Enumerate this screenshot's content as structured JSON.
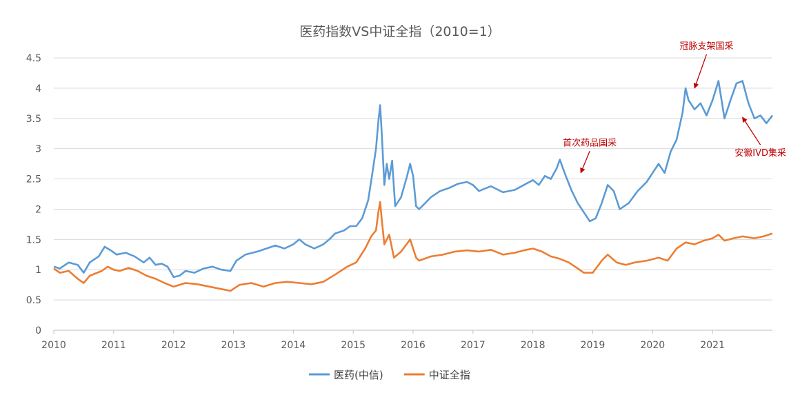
{
  "chart_data": {
    "type": "line",
    "title": "医药指数VS中证全指（2010=1）",
    "ylim": [
      0,
      4.5
    ],
    "y_ticks": [
      "0",
      "0.5",
      "1",
      "1.5",
      "2",
      "2.5",
      "3",
      "3.5",
      "4",
      "4.5"
    ],
    "xlim": [
      2010,
      2022
    ],
    "x_ticks": [
      "2010",
      "2011",
      "2012",
      "2013",
      "2014",
      "2015",
      "2016",
      "2017",
      "2018",
      "2019",
      "2020",
      "2021"
    ],
    "grid": true,
    "legend_position": "bottom",
    "series": [
      {
        "name": "医药(中信)",
        "color": "#5b9bd5",
        "points": [
          [
            2010.0,
            1.05
          ],
          [
            2010.1,
            1.02
          ],
          [
            2010.25,
            1.12
          ],
          [
            2010.4,
            1.08
          ],
          [
            2010.5,
            0.95
          ],
          [
            2010.6,
            1.12
          ],
          [
            2010.75,
            1.22
          ],
          [
            2010.85,
            1.38
          ],
          [
            2010.95,
            1.32
          ],
          [
            2011.05,
            1.25
          ],
          [
            2011.2,
            1.28
          ],
          [
            2011.35,
            1.22
          ],
          [
            2011.5,
            1.12
          ],
          [
            2011.6,
            1.2
          ],
          [
            2011.7,
            1.08
          ],
          [
            2011.8,
            1.1
          ],
          [
            2011.9,
            1.05
          ],
          [
            2012.0,
            0.88
          ],
          [
            2012.1,
            0.9
          ],
          [
            2012.2,
            0.98
          ],
          [
            2012.35,
            0.95
          ],
          [
            2012.5,
            1.02
          ],
          [
            2012.65,
            1.05
          ],
          [
            2012.8,
            1.0
          ],
          [
            2012.95,
            0.98
          ],
          [
            2013.05,
            1.15
          ],
          [
            2013.2,
            1.25
          ],
          [
            2013.4,
            1.3
          ],
          [
            2013.55,
            1.35
          ],
          [
            2013.7,
            1.4
          ],
          [
            2013.85,
            1.35
          ],
          [
            2014.0,
            1.42
          ],
          [
            2014.1,
            1.5
          ],
          [
            2014.2,
            1.42
          ],
          [
            2014.35,
            1.35
          ],
          [
            2014.5,
            1.42
          ],
          [
            2014.6,
            1.5
          ],
          [
            2014.7,
            1.6
          ],
          [
            2014.85,
            1.65
          ],
          [
            2014.95,
            1.72
          ],
          [
            2015.05,
            1.72
          ],
          [
            2015.15,
            1.85
          ],
          [
            2015.25,
            2.15
          ],
          [
            2015.32,
            2.6
          ],
          [
            2015.38,
            3.0
          ],
          [
            2015.42,
            3.45
          ],
          [
            2015.45,
            3.72
          ],
          [
            2015.48,
            3.2
          ],
          [
            2015.52,
            2.4
          ],
          [
            2015.56,
            2.75
          ],
          [
            2015.6,
            2.5
          ],
          [
            2015.65,
            2.8
          ],
          [
            2015.7,
            2.05
          ],
          [
            2015.8,
            2.2
          ],
          [
            2015.9,
            2.55
          ],
          [
            2015.95,
            2.75
          ],
          [
            2016.0,
            2.55
          ],
          [
            2016.05,
            2.05
          ],
          [
            2016.1,
            2.0
          ],
          [
            2016.2,
            2.1
          ],
          [
            2016.3,
            2.2
          ],
          [
            2016.45,
            2.3
          ],
          [
            2016.6,
            2.35
          ],
          [
            2016.75,
            2.42
          ],
          [
            2016.9,
            2.45
          ],
          [
            2017.0,
            2.4
          ],
          [
            2017.1,
            2.3
          ],
          [
            2017.3,
            2.38
          ],
          [
            2017.5,
            2.28
          ],
          [
            2017.7,
            2.32
          ],
          [
            2017.85,
            2.4
          ],
          [
            2018.0,
            2.48
          ],
          [
            2018.1,
            2.4
          ],
          [
            2018.2,
            2.55
          ],
          [
            2018.3,
            2.5
          ],
          [
            2018.4,
            2.68
          ],
          [
            2018.45,
            2.82
          ],
          [
            2018.55,
            2.55
          ],
          [
            2018.65,
            2.3
          ],
          [
            2018.75,
            2.1
          ],
          [
            2018.85,
            1.95
          ],
          [
            2018.95,
            1.8
          ],
          [
            2019.05,
            1.85
          ],
          [
            2019.15,
            2.1
          ],
          [
            2019.25,
            2.4
          ],
          [
            2019.35,
            2.3
          ],
          [
            2019.45,
            2.0
          ],
          [
            2019.6,
            2.1
          ],
          [
            2019.75,
            2.3
          ],
          [
            2019.9,
            2.45
          ],
          [
            2020.0,
            2.6
          ],
          [
            2020.1,
            2.75
          ],
          [
            2020.2,
            2.6
          ],
          [
            2020.3,
            2.95
          ],
          [
            2020.4,
            3.15
          ],
          [
            2020.5,
            3.6
          ],
          [
            2020.55,
            4.0
          ],
          [
            2020.6,
            3.8
          ],
          [
            2020.7,
            3.65
          ],
          [
            2020.8,
            3.75
          ],
          [
            2020.9,
            3.55
          ],
          [
            2021.0,
            3.8
          ],
          [
            2021.1,
            4.12
          ],
          [
            2021.2,
            3.5
          ],
          [
            2021.3,
            3.8
          ],
          [
            2021.4,
            4.08
          ],
          [
            2021.5,
            4.12
          ],
          [
            2021.6,
            3.75
          ],
          [
            2021.7,
            3.5
          ],
          [
            2021.8,
            3.55
          ],
          [
            2021.9,
            3.42
          ],
          [
            2022.0,
            3.55
          ]
        ]
      },
      {
        "name": "中证全指",
        "color": "#ed7d31",
        "points": [
          [
            2010.0,
            1.02
          ],
          [
            2010.1,
            0.95
          ],
          [
            2010.25,
            0.98
          ],
          [
            2010.4,
            0.85
          ],
          [
            2010.5,
            0.78
          ],
          [
            2010.6,
            0.9
          ],
          [
            2010.8,
            0.98
          ],
          [
            2010.9,
            1.05
          ],
          [
            2011.0,
            1.0
          ],
          [
            2011.1,
            0.98
          ],
          [
            2011.25,
            1.03
          ],
          [
            2011.4,
            0.98
          ],
          [
            2011.55,
            0.9
          ],
          [
            2011.7,
            0.85
          ],
          [
            2011.85,
            0.78
          ],
          [
            2012.0,
            0.72
          ],
          [
            2012.2,
            0.78
          ],
          [
            2012.4,
            0.76
          ],
          [
            2012.6,
            0.72
          ],
          [
            2012.8,
            0.68
          ],
          [
            2012.95,
            0.65
          ],
          [
            2013.1,
            0.75
          ],
          [
            2013.3,
            0.78
          ],
          [
            2013.5,
            0.72
          ],
          [
            2013.7,
            0.78
          ],
          [
            2013.9,
            0.8
          ],
          [
            2014.1,
            0.78
          ],
          [
            2014.3,
            0.76
          ],
          [
            2014.5,
            0.8
          ],
          [
            2014.7,
            0.92
          ],
          [
            2014.9,
            1.05
          ],
          [
            2015.05,
            1.12
          ],
          [
            2015.2,
            1.35
          ],
          [
            2015.3,
            1.55
          ],
          [
            2015.38,
            1.65
          ],
          [
            2015.42,
            1.95
          ],
          [
            2015.45,
            2.12
          ],
          [
            2015.48,
            1.8
          ],
          [
            2015.52,
            1.42
          ],
          [
            2015.6,
            1.58
          ],
          [
            2015.68,
            1.2
          ],
          [
            2015.8,
            1.3
          ],
          [
            2015.95,
            1.5
          ],
          [
            2016.05,
            1.2
          ],
          [
            2016.1,
            1.15
          ],
          [
            2016.3,
            1.22
          ],
          [
            2016.5,
            1.25
          ],
          [
            2016.7,
            1.3
          ],
          [
            2016.9,
            1.32
          ],
          [
            2017.1,
            1.3
          ],
          [
            2017.3,
            1.33
          ],
          [
            2017.5,
            1.25
          ],
          [
            2017.7,
            1.28
          ],
          [
            2017.85,
            1.32
          ],
          [
            2018.0,
            1.35
          ],
          [
            2018.15,
            1.3
          ],
          [
            2018.3,
            1.22
          ],
          [
            2018.45,
            1.18
          ],
          [
            2018.6,
            1.12
          ],
          [
            2018.75,
            1.02
          ],
          [
            2018.85,
            0.95
          ],
          [
            2019.0,
            0.95
          ],
          [
            2019.15,
            1.15
          ],
          [
            2019.25,
            1.25
          ],
          [
            2019.4,
            1.12
          ],
          [
            2019.55,
            1.08
          ],
          [
            2019.7,
            1.12
          ],
          [
            2019.9,
            1.15
          ],
          [
            2020.1,
            1.2
          ],
          [
            2020.25,
            1.15
          ],
          [
            2020.4,
            1.35
          ],
          [
            2020.55,
            1.45
          ],
          [
            2020.7,
            1.42
          ],
          [
            2020.85,
            1.48
          ],
          [
            2021.0,
            1.52
          ],
          [
            2021.1,
            1.58
          ],
          [
            2021.2,
            1.48
          ],
          [
            2021.35,
            1.52
          ],
          [
            2021.5,
            1.55
          ],
          [
            2021.7,
            1.52
          ],
          [
            2021.85,
            1.55
          ],
          [
            2022.0,
            1.6
          ]
        ]
      }
    ],
    "annotations": [
      {
        "text": "冠脉支架国采",
        "x": 2020.9,
        "y": 4.65,
        "arrow_to_x": 2020.7,
        "arrow_to_y": 4.0
      },
      {
        "text": "首次药品国采",
        "x": 2018.95,
        "y": 3.05,
        "arrow_to_x": 2018.8,
        "arrow_to_y": 2.6
      },
      {
        "text": "安徽IVD集采",
        "x": 2021.8,
        "y": 2.88,
        "arrow_to_x": 2021.5,
        "arrow_to_y": 3.52
      }
    ]
  }
}
